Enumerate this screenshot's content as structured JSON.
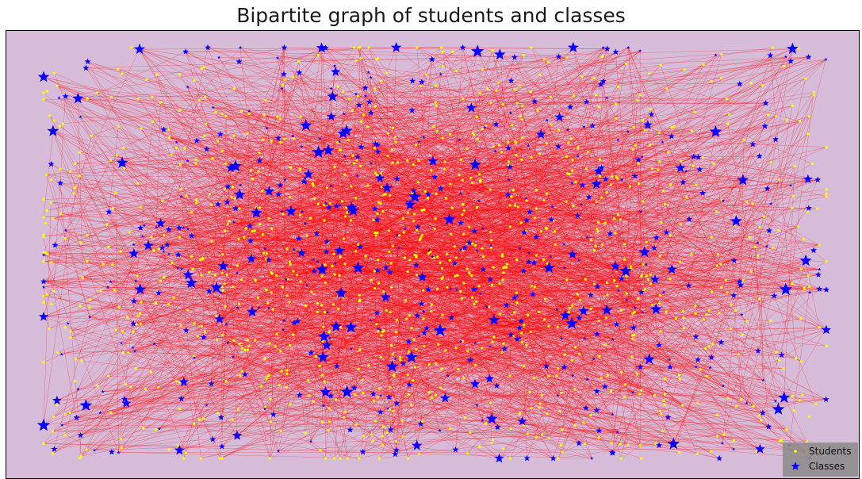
{
  "title": "Bipartite graph of students and classes",
  "colors": {
    "background": "#d6bcd8",
    "edge": "#ff0000",
    "student": "#ffff00",
    "class": "#0a00ff",
    "legend_bg": "#8a8a8a"
  },
  "legend": {
    "placement": "bottom-right",
    "items": [
      {
        "label": "Students",
        "marker": "dot"
      },
      {
        "label": "Classes",
        "marker": "star"
      }
    ]
  },
  "graph": {
    "node_types": [
      "Students",
      "Classes"
    ]
  }
}
